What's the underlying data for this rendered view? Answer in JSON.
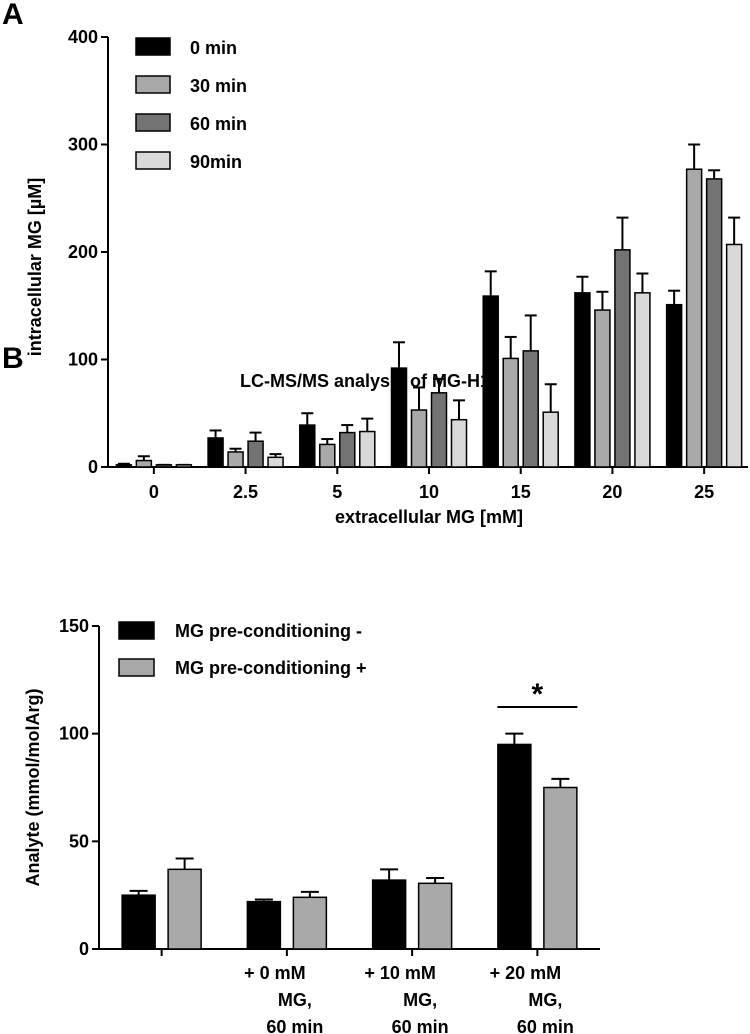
{
  "chart_data": [
    {
      "panel": "A",
      "type": "bar",
      "title": "",
      "xlabel": "extracellular MG [mM]",
      "ylabel": "intracellular MG [µM]",
      "ylim": [
        0,
        400
      ],
      "yticks": [
        "0",
        "100",
        "200",
        "300",
        "400"
      ],
      "categories": [
        "0",
        "2.5",
        "5",
        "10",
        "15",
        "20",
        "25"
      ],
      "legend_position": "top-left",
      "series": [
        {
          "name": "0 min",
          "color": "#000000",
          "values": [
            2,
            27,
            39,
            92,
            159,
            162,
            151
          ],
          "errors": [
            1,
            7,
            11,
            24,
            23,
            15,
            13
          ]
        },
        {
          "name": "30 min",
          "color": "#a9a9a9",
          "values": [
            6,
            14,
            21,
            53,
            101,
            146,
            277
          ],
          "errors": [
            4,
            3,
            5,
            21,
            20,
            17,
            23
          ]
        },
        {
          "name": "60 min",
          "color": "#737373",
          "values": [
            2,
            24,
            32,
            69,
            108,
            202,
            268
          ],
          "errors": [
            0,
            8,
            7,
            13,
            33,
            30,
            8
          ]
        },
        {
          "name": "90min",
          "color": "#d9d9d9",
          "values": [
            2,
            9,
            33,
            44,
            51,
            162,
            207
          ],
          "errors": [
            0,
            3,
            12,
            18,
            26,
            18,
            25
          ]
        }
      ]
    },
    {
      "panel": "B",
      "type": "bar",
      "title": "LC-MS/MS analysis of MG-H1",
      "xlabel": "",
      "ylabel": "Analyte (mmol/molArg)",
      "ylim": [
        0,
        150
      ],
      "yticks": [
        "0",
        "50",
        "100",
        "150"
      ],
      "categories": [
        [
          "-"
        ],
        [
          "+ 0 mM",
          "MG,",
          "60 min"
        ],
        [
          "+ 10 mM",
          "MG,",
          "60 min"
        ],
        [
          "+ 20 mM",
          "MG,",
          "60 min"
        ]
      ],
      "legend_position": "top-left",
      "series": [
        {
          "name": "MG pre-conditioning -",
          "color": "#000000",
          "values": [
            25,
            22,
            32,
            95
          ],
          "errors": [
            2,
            1,
            5,
            5
          ]
        },
        {
          "name": "MG pre-conditioning +",
          "color": "#a9a9a9",
          "values": [
            37,
            24,
            30.5,
            75
          ],
          "errors": [
            5,
            2.5,
            2.5,
            4
          ]
        }
      ],
      "annotations": [
        {
          "text": "*",
          "category_index": 3
        }
      ]
    }
  ]
}
